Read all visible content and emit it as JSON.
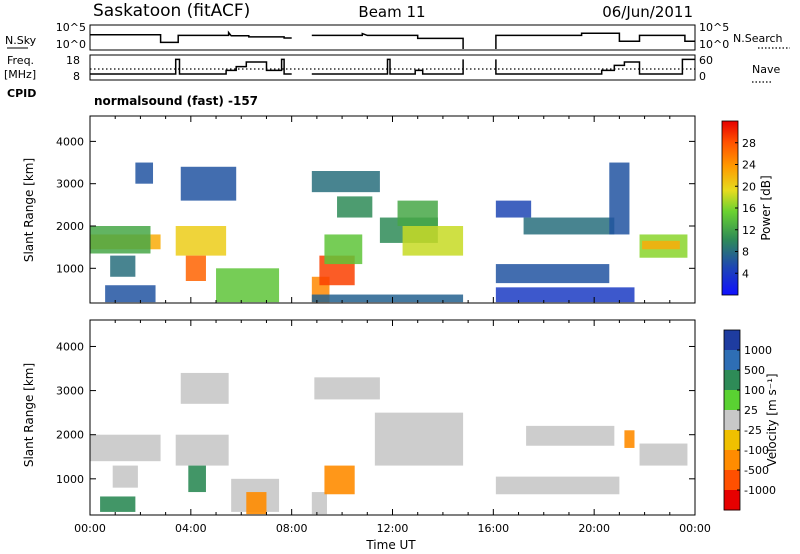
{
  "header": {
    "station": "Saskatoon (fitACF)",
    "beam": "Beam 11",
    "date": "06/Jun/2011",
    "mode_label": "normalsound (fast) -157"
  },
  "side_labels": {
    "nsky": "N.Sky",
    "freq_line1": "Freq.",
    "freq_line2": "[MHz]",
    "cpid": "CPID",
    "nsearch": "N.Search",
    "nave": "Nave"
  },
  "chart_data": [
    {
      "id": "noise",
      "type": "line",
      "ylim_ticks": [
        "10^0",
        "10^5"
      ],
      "right_ticks": [
        "10^0",
        "10^5"
      ],
      "series": [
        {
          "name": "N.Sky",
          "style": "solid",
          "segments": [
            [
              [
                0.0,
                0.65
              ],
              [
                2.8,
                0.65
              ],
              [
                2.8,
                0.3
              ],
              [
                3.5,
                0.3
              ],
              [
                3.5,
                0.62
              ],
              [
                5.5,
                0.62
              ],
              [
                5.5,
                0.75
              ],
              [
                5.6,
                0.6
              ],
              [
                6.3,
                0.6
              ],
              [
                6.3,
                0.55
              ],
              [
                7.7,
                0.55
              ],
              [
                7.7,
                0.5
              ],
              [
                8.0,
                0.5
              ]
            ],
            [
              [
                8.8,
                0.62
              ],
              [
                10.8,
                0.62
              ],
              [
                10.8,
                0.7
              ],
              [
                11.0,
                0.62
              ],
              [
                13.0,
                0.62
              ],
              [
                13.0,
                0.48
              ],
              [
                14.8,
                0.48
              ],
              [
                14.8,
                0.0
              ]
            ],
            [
              [
                16.1,
                0.0
              ],
              [
                16.1,
                0.62
              ],
              [
                19.5,
                0.62
              ],
              [
                19.5,
                0.72
              ],
              [
                21.0,
                0.72
              ],
              [
                21.0,
                0.35
              ],
              [
                21.8,
                0.35
              ],
              [
                21.8,
                0.62
              ],
              [
                23.6,
                0.62
              ],
              [
                23.6,
                0.35
              ],
              [
                24.0,
                0.35
              ]
            ]
          ]
        }
      ]
    },
    {
      "id": "frequency",
      "type": "line",
      "left_ticks": [
        8,
        18
      ],
      "right_ticks": [
        0,
        60
      ],
      "series": [
        {
          "name": "Freq.",
          "style": "solid",
          "segments": [
            [
              [
                0.0,
                10.5
              ],
              [
                3.4,
                10.5
              ],
              [
                3.4,
                17.8
              ],
              [
                3.55,
                17.8
              ],
              [
                3.55,
                10.5
              ],
              [
                5.4,
                10.5
              ],
              [
                5.4,
                12.3
              ],
              [
                5.8,
                12.3
              ],
              [
                5.8,
                14.2
              ],
              [
                6.2,
                14.2
              ],
              [
                6.2,
                16.5
              ],
              [
                7.0,
                16.5
              ],
              [
                7.0,
                12.3
              ],
              [
                7.6,
                12.3
              ],
              [
                7.6,
                17.8
              ],
              [
                7.7,
                17.8
              ],
              [
                7.7,
                10.5
              ],
              [
                8.0,
                10.5
              ]
            ],
            [
              [
                8.8,
                10.5
              ],
              [
                11.8,
                10.5
              ],
              [
                11.8,
                17.8
              ],
              [
                11.9,
                17.8
              ],
              [
                11.9,
                10.5
              ],
              [
                12.9,
                10.5
              ],
              [
                12.9,
                12.3
              ],
              [
                13.2,
                12.3
              ],
              [
                13.2,
                10.5
              ],
              [
                14.8,
                10.5
              ],
              [
                14.8,
                17.8
              ]
            ],
            [
              [
                16.1,
                17.8
              ],
              [
                16.1,
                10.5
              ],
              [
                20.3,
                10.5
              ],
              [
                20.3,
                12.3
              ],
              [
                20.8,
                12.3
              ],
              [
                20.8,
                14.8
              ],
              [
                21.2,
                14.8
              ],
              [
                21.2,
                16.5
              ],
              [
                21.8,
                16.5
              ],
              [
                21.8,
                10.5
              ],
              [
                23.5,
                10.5
              ],
              [
                23.5,
                17.8
              ],
              [
                24.0,
                17.8
              ]
            ]
          ]
        },
        {
          "name": "Nave",
          "style": "dotted",
          "value": 13
        }
      ]
    },
    {
      "id": "power",
      "type": "heatmap",
      "ylabel": "Slant Range [km]",
      "xlim": [
        0,
        24
      ],
      "ylim": [
        180,
        4600
      ],
      "yticks": [
        1000,
        2000,
        3000,
        4000
      ],
      "colorbar_label": "Power [dB]",
      "colorbar_ticks": [
        4,
        8,
        12,
        16,
        20,
        24,
        28
      ],
      "colorbar_range": [
        0,
        32
      ],
      "regions": [
        {
          "t0": 0.0,
          "t1": 2.8,
          "r0": 1450,
          "r1": 1800,
          "v": 22
        },
        {
          "t0": 0.0,
          "t1": 2.4,
          "r0": 1350,
          "r1": 2000,
          "v": 12
        },
        {
          "t0": 0.8,
          "t1": 1.8,
          "r0": 800,
          "r1": 1300,
          "v": 8
        },
        {
          "t0": 1.8,
          "t1": 2.5,
          "r0": 3000,
          "r1": 3500,
          "v": 6
        },
        {
          "t0": 0.6,
          "t1": 2.6,
          "r0": 200,
          "r1": 600,
          "v": 6
        },
        {
          "t0": 3.4,
          "t1": 5.4,
          "r0": 1300,
          "r1": 2000,
          "v": 20
        },
        {
          "t0": 3.8,
          "t1": 4.6,
          "r0": 700,
          "r1": 1300,
          "v": 26
        },
        {
          "t0": 5.0,
          "t1": 7.5,
          "r0": 200,
          "r1": 1000,
          "v": 14
        },
        {
          "t0": 3.6,
          "t1": 5.8,
          "r0": 2600,
          "r1": 3400,
          "v": 6
        },
        {
          "t0": 8.8,
          "t1": 9.5,
          "r0": 200,
          "r1": 800,
          "v": 24
        },
        {
          "t0": 9.1,
          "t1": 10.5,
          "r0": 600,
          "r1": 1300,
          "v": 28
        },
        {
          "t0": 9.3,
          "t1": 10.8,
          "r0": 1100,
          "r1": 1800,
          "v": 14
        },
        {
          "t0": 8.8,
          "t1": 11.5,
          "r0": 2800,
          "r1": 3300,
          "v": 8
        },
        {
          "t0": 9.8,
          "t1": 11.2,
          "r0": 2200,
          "r1": 2700,
          "v": 10
        },
        {
          "t0": 11.5,
          "t1": 13.8,
          "r0": 1600,
          "r1": 2200,
          "v": 10
        },
        {
          "t0": 12.4,
          "t1": 14.8,
          "r0": 1300,
          "r1": 2000,
          "v": 18
        },
        {
          "t0": 12.2,
          "t1": 13.8,
          "r0": 2000,
          "r1": 2600,
          "v": 12
        },
        {
          "t0": 8.8,
          "t1": 14.8,
          "r0": 200,
          "r1": 380,
          "v": 7
        },
        {
          "t0": 16.1,
          "t1": 20.6,
          "r0": 650,
          "r1": 1100,
          "v": 6
        },
        {
          "t0": 17.2,
          "t1": 20.8,
          "r0": 1800,
          "r1": 2200,
          "v": 8
        },
        {
          "t0": 16.1,
          "t1": 17.5,
          "r0": 2200,
          "r1": 2600,
          "v": 5
        },
        {
          "t0": 16.1,
          "t1": 21.6,
          "r0": 200,
          "r1": 550,
          "v": 4
        },
        {
          "t0": 20.6,
          "t1": 21.4,
          "r0": 1800,
          "r1": 3500,
          "v": 6
        },
        {
          "t0": 21.8,
          "t1": 23.7,
          "r0": 1250,
          "r1": 1800,
          "v": 16
        },
        {
          "t0": 21.9,
          "t1": 23.4,
          "r0": 1450,
          "r1": 1650,
          "v": 22
        }
      ]
    },
    {
      "id": "velocity",
      "type": "heatmap",
      "xlabel": "Time UT",
      "ylabel": "Slant Range [km]",
      "xlim": [
        0,
        24
      ],
      "ylim": [
        180,
        4600
      ],
      "xticks": [
        "00:00",
        "04:00",
        "08:00",
        "12:00",
        "16:00",
        "20:00",
        "00:00"
      ],
      "yticks": [
        1000,
        2000,
        3000,
        4000
      ],
      "colorbar_label": "Velocity [m s⁻¹]",
      "colorbar_ticks": [
        "1000",
        "500",
        "100",
        "25",
        "-25",
        "-100",
        "-500",
        "-1000"
      ],
      "colors": {
        "ground": "#c8c8c8",
        "green": "#2e8b57",
        "orange": "#ff8c00",
        "yellow": "#f0c000"
      },
      "regions": [
        {
          "t0": 0.0,
          "t1": 2.8,
          "r0": 1400,
          "r1": 2000,
          "c": "ground"
        },
        {
          "t0": 0.9,
          "t1": 1.9,
          "r0": 800,
          "r1": 1300,
          "c": "ground"
        },
        {
          "t0": 0.4,
          "t1": 1.8,
          "r0": 250,
          "r1": 600,
          "c": "green"
        },
        {
          "t0": 3.4,
          "t1": 5.5,
          "r0": 1300,
          "r1": 2000,
          "c": "ground"
        },
        {
          "t0": 3.9,
          "t1": 4.6,
          "r0": 700,
          "r1": 1300,
          "c": "green"
        },
        {
          "t0": 5.6,
          "t1": 7.5,
          "r0": 250,
          "r1": 1000,
          "c": "ground"
        },
        {
          "t0": 6.2,
          "t1": 7.0,
          "r0": 200,
          "r1": 700,
          "c": "orange"
        },
        {
          "t0": 3.6,
          "t1": 5.5,
          "r0": 2700,
          "r1": 3400,
          "c": "ground"
        },
        {
          "t0": 8.8,
          "t1": 9.4,
          "r0": 200,
          "r1": 700,
          "c": "ground"
        },
        {
          "t0": 9.3,
          "t1": 10.5,
          "r0": 650,
          "r1": 1300,
          "c": "orange"
        },
        {
          "t0": 8.9,
          "t1": 11.5,
          "r0": 2800,
          "r1": 3300,
          "c": "ground"
        },
        {
          "t0": 11.3,
          "t1": 14.8,
          "r0": 1300,
          "r1": 2500,
          "c": "ground"
        },
        {
          "t0": 16.1,
          "t1": 21.0,
          "r0": 650,
          "r1": 1050,
          "c": "ground"
        },
        {
          "t0": 17.3,
          "t1": 20.8,
          "r0": 1750,
          "r1": 2200,
          "c": "ground"
        },
        {
          "t0": 21.2,
          "t1": 21.6,
          "r0": 1700,
          "r1": 2100,
          "c": "orange"
        },
        {
          "t0": 21.8,
          "t1": 23.7,
          "r0": 1300,
          "r1": 1800,
          "c": "ground"
        }
      ]
    }
  ]
}
